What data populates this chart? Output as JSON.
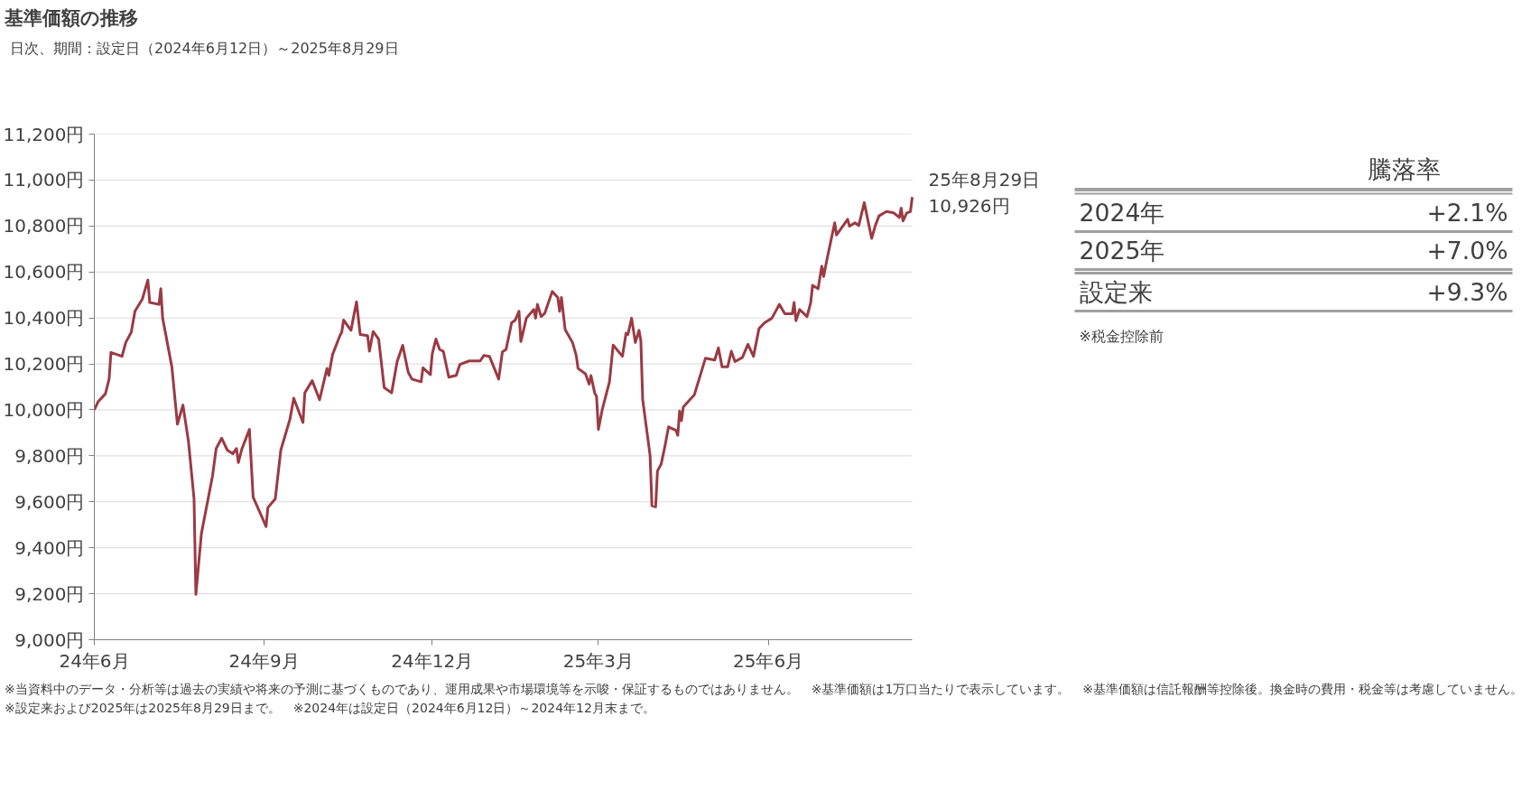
{
  "chart_data": [
    {
      "type": "line",
      "title": "基準価額の推移",
      "subtitle": "日次、期間：設定日（2024年6月12日）～2025年8月29日",
      "x": [
        "2024-06-12",
        "2024-06-14",
        "2024-06-18",
        "2024-06-20",
        "2024-06-21",
        "2024-06-27",
        "2024-06-29",
        "2024-07-02",
        "2024-07-04",
        "2024-07-08",
        "2024-07-11",
        "2024-07-12",
        "2024-07-17",
        "2024-07-18",
        "2024-07-19",
        "2024-07-24",
        "2024-07-27",
        "2024-07-30",
        "2024-08-02",
        "2024-08-05",
        "2024-08-06",
        "2024-08-09",
        "2024-08-15",
        "2024-08-17",
        "2024-08-20",
        "2024-08-23",
        "2024-08-26",
        "2024-08-28",
        "2024-08-29",
        "2024-08-31",
        "2024-09-04",
        "2024-09-06",
        "2024-09-11",
        "2024-09-13",
        "2024-09-14",
        "2024-09-18",
        "2024-09-21",
        "2024-09-26",
        "2024-09-28",
        "2024-10-03",
        "2024-10-04",
        "2024-10-08",
        "2024-10-12",
        "2024-10-16",
        "2024-10-17",
        "2024-10-19",
        "2024-10-23",
        "2024-10-24",
        "2024-10-25",
        "2024-10-29",
        "2024-11-01",
        "2024-11-03",
        "2024-11-07",
        "2024-11-08",
        "2024-11-10",
        "2024-11-13",
        "2024-11-16",
        "2024-11-20",
        "2024-11-23",
        "2024-11-26",
        "2024-11-29",
        "2024-12-01",
        "2024-12-06",
        "2024-12-07",
        "2024-12-11",
        "2024-12-12",
        "2024-12-14",
        "2024-12-16",
        "2024-12-18",
        "2024-12-21",
        "2024-12-25",
        "2024-12-27",
        "2025-01-01",
        "2025-01-07",
        "2025-01-09",
        "2025-01-12",
        "2025-01-17",
        "2025-01-19",
        "2025-01-21",
        "2025-01-24",
        "2025-01-26",
        "2025-01-28",
        "2025-01-29",
        "2025-02-01",
        "2025-02-05",
        "2025-02-06",
        "2025-02-07",
        "2025-02-09",
        "2025-02-11",
        "2025-02-15",
        "2025-02-18",
        "2025-02-19",
        "2025-02-20",
        "2025-02-22",
        "2025-02-26",
        "2025-02-28",
        "2025-03-01",
        "2025-03-05",
        "2025-03-07",
        "2025-03-08",
        "2025-03-10",
        "2025-03-11",
        "2025-03-12",
        "2025-03-14",
        "2025-03-18",
        "2025-03-20",
        "2025-03-25",
        "2025-03-27",
        "2025-03-28",
        "2025-03-30",
        "2025-04-01",
        "2025-04-03",
        "2025-04-04",
        "2025-04-05",
        "2025-04-09",
        "2025-04-10",
        "2025-04-12",
        "2025-04-13",
        "2025-04-15",
        "2025-04-17",
        "2025-04-19",
        "2025-04-23",
        "2025-04-24",
        "2025-04-25",
        "2025-04-26",
        "2025-04-27",
        "2025-05-03",
        "2025-05-09",
        "2025-05-14",
        "2025-05-16",
        "2025-05-18",
        "2025-05-21",
        "2025-05-23",
        "2025-05-25",
        "2025-05-29",
        "2025-06-01",
        "2025-06-04",
        "2025-06-07",
        "2025-06-10",
        "2025-06-14",
        "2025-06-18",
        "2025-06-21",
        "2025-06-25",
        "2025-06-26",
        "2025-06-27",
        "2025-06-29",
        "2025-07-03",
        "2025-07-05",
        "2025-07-06",
        "2025-07-09",
        "2025-07-11",
        "2025-07-12",
        "2025-07-14",
        "2025-07-18",
        "2025-07-19",
        "2025-07-25",
        "2025-07-26",
        "2025-07-29",
        "2025-07-31",
        "2025-08-03",
        "2025-08-07",
        "2025-08-09",
        "2025-08-11",
        "2025-08-15",
        "2025-08-19",
        "2025-08-22",
        "2025-08-23",
        "2025-08-24",
        "2025-08-26",
        "2025-08-28",
        "2025-08-29"
      ],
      "series": [
        {
          "color": "#9b3a44",
          "values": [
            10000,
            10035,
            10070,
            10134,
            10250,
            10233,
            10293,
            10338,
            10429,
            10482,
            10565,
            10467,
            10459,
            10527,
            10399,
            10187,
            9938,
            10021,
            9862,
            9613,
            9197,
            9462,
            9712,
            9832,
            9877,
            9825,
            9809,
            9832,
            9771,
            9832,
            9915,
            9620,
            9530,
            9492,
            9575,
            9613,
            9825,
            9961,
            10051,
            9945,
            10074,
            10127,
            10044,
            10180,
            10150,
            10240,
            10323,
            10338,
            10391,
            10346,
            10470,
            10328,
            10323,
            10255,
            10341,
            10308,
            10097,
            10074,
            10210,
            10281,
            10164,
            10134,
            10122,
            10183,
            10153,
            10243,
            10308,
            10263,
            10255,
            10142,
            10150,
            10198,
            10213,
            10213,
            10237,
            10233,
            10134,
            10252,
            10263,
            10379,
            10391,
            10429,
            10297,
            10399,
            10437,
            10399,
            10459,
            10406,
            10421,
            10515,
            10489,
            10429,
            10489,
            10349,
            10293,
            10237,
            10180,
            10157,
            10112,
            10149,
            10074,
            10059,
            9915,
            9998,
            10122,
            10282,
            10233,
            10334,
            10328,
            10399,
            10293,
            10346,
            10301,
            10044,
            9802,
            9583,
            9578,
            9734,
            9764,
            9840,
            9926,
            9911,
            9889,
            9995,
            9953,
            10013,
            10066,
            10225,
            10217,
            10270,
            10187,
            10187,
            10255,
            10210,
            10228,
            10285,
            10233,
            10354,
            10379,
            10399,
            10459,
            10418,
            10418,
            10467,
            10388,
            10437,
            10406,
            10467,
            10542,
            10527,
            10625,
            10580,
            10663,
            10814,
            10761,
            10829,
            10799,
            10814,
            10802,
            10902,
            10746,
            10802,
            10844,
            10863,
            10857,
            10837,
            10878,
            10822,
            10857,
            10863,
            10926
          ]
        }
      ],
      "xlim": [
        "2024-06-12",
        "2025-08-29"
      ],
      "xticks": [
        {
          "value": "2024-06-12",
          "label": "24年6月"
        },
        {
          "value": "2024-09-12",
          "label": "24年9月"
        },
        {
          "value": "2024-12-12",
          "label": "24年12月"
        },
        {
          "value": "2025-03-12",
          "label": "25年3月"
        },
        {
          "value": "2025-06-12",
          "label": "25年6月"
        }
      ],
      "ylim": [
        9000,
        11200
      ],
      "yticks": [
        {
          "value": 9000,
          "label": "9,000円"
        },
        {
          "value": 9200,
          "label": "9,200円"
        },
        {
          "value": 9400,
          "label": "9,400円"
        },
        {
          "value": 9600,
          "label": "9,600円"
        },
        {
          "value": 9800,
          "label": "9,800円"
        },
        {
          "value": 10000,
          "label": "10,000円"
        },
        {
          "value": 10200,
          "label": "10,200円"
        },
        {
          "value": 10400,
          "label": "10,400円"
        },
        {
          "value": 10600,
          "label": "10,600円"
        },
        {
          "value": 10800,
          "label": "10,800円"
        },
        {
          "value": 11000,
          "label": "11,000円"
        },
        {
          "value": 11200,
          "label": "11,200円"
        }
      ],
      "grid": "y",
      "line_style": "solid",
      "annotations": [
        {
          "text": "25年8月29日\n10,926円",
          "x": "2025-08-29",
          "y": 10926
        },
        "※当資料中のデータ・分析等は過去の実績や将来の予測に基づくものであり、運用成果や市場環境等を示唆・保証するものではありません。",
        "※基準価額は1万口当たりで表示しています。",
        "※基準価額は信託報酬等控除後。換金時の費用・税金等は考慮していません。",
        "※設定来および2025年は2025年8月29日まで。",
        "※2024年は設定日（2024年6月12日）～2024年12月末まで。"
      ]
    },
    {
      "type": "other",
      "title": "騰落率",
      "categories": [
        "2024年",
        "2025年",
        "設定来"
      ],
      "values": [
        2.1,
        7.0,
        9.3
      ],
      "value_labels": [
        "+2.1%",
        "+7.0%",
        "+9.3%"
      ],
      "annotations": [
        "※税金控除前"
      ]
    }
  ]
}
